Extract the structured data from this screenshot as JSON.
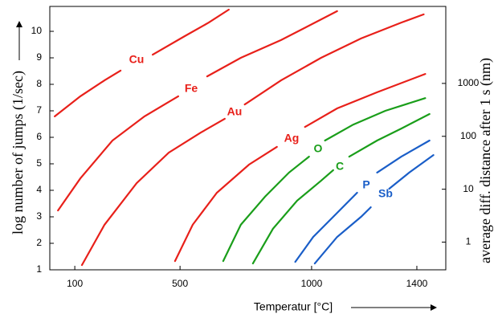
{
  "chart_data": {
    "type": "line",
    "ylabel": "log number of jumps (1/sec)",
    "y2label": "average diff. distance after 1 s (nm)",
    "xlabel": "Temperatur  [°C]",
    "xlim": [
      5,
      1510
    ],
    "xticks": [
      100,
      500,
      1000,
      1400
    ],
    "ylim": [
      1,
      10.94
    ],
    "yticks": [
      1,
      2,
      3,
      4,
      5,
      6,
      7,
      8,
      9,
      10
    ],
    "y2lim": [
      0.3,
      28500
    ],
    "y2ticks": [
      1,
      10,
      100,
      1000
    ],
    "y2scale": "log",
    "series": [
      {
        "name": "Cu",
        "color": "#e8201a",
        "x": [
          24,
          121,
          213,
          274,
          null,
          396,
          518,
          609,
          685
        ],
        "values": [
          6.79,
          7.55,
          8.15,
          8.52,
          null,
          9.12,
          9.82,
          10.33,
          10.82
        ]
      },
      {
        "name": "Fe",
        "color": "#e8201a",
        "x": [
          36,
          121,
          243,
          365,
          493,
          null,
          603,
          731,
          884,
          1097
        ],
        "values": [
          3.24,
          4.45,
          5.88,
          6.79,
          7.55,
          null,
          8.3,
          9.0,
          9.67,
          10.76
        ]
      },
      {
        "name": "Au",
        "color": "#e8201a",
        "x": [
          127,
          213,
          335,
          457,
          579,
          670,
          null,
          746,
          884,
          1036,
          1188,
          1341,
          1426
        ],
        "values": [
          1.18,
          2.7,
          4.27,
          5.42,
          6.18,
          6.7,
          null,
          7.24,
          8.15,
          9.0,
          9.73,
          10.33,
          10.64
        ]
      },
      {
        "name": "Ag",
        "color": "#e8201a",
        "x": [
          481,
          548,
          640,
          762,
          868,
          null,
          975,
          1097,
          1249,
          1432
        ],
        "values": [
          1.33,
          2.7,
          3.91,
          4.97,
          5.64,
          null,
          6.39,
          7.09,
          7.7,
          8.39
        ]
      },
      {
        "name": "O",
        "color": "#1a9e1a",
        "x": [
          664,
          731,
          823,
          914,
          990,
          null,
          1051,
          1158,
          1280,
          1432
        ],
        "values": [
          1.33,
          2.7,
          3.76,
          4.67,
          5.27,
          null,
          5.88,
          6.48,
          7.0,
          7.48
        ]
      },
      {
        "name": "C",
        "color": "#1a9e1a",
        "x": [
          777,
          853,
          945,
          1036,
          1082,
          null,
          1143,
          1249,
          1341,
          1448
        ],
        "values": [
          1.24,
          2.55,
          3.61,
          4.36,
          4.76,
          null,
          5.27,
          5.88,
          6.33,
          6.88
        ]
      },
      {
        "name": "P",
        "color": "#1a5ec8",
        "x": [
          938,
          1006,
          1097,
          1173,
          null,
          1249,
          1341,
          1448
        ],
        "values": [
          1.3,
          2.24,
          3.15,
          3.91,
          null,
          4.67,
          5.27,
          5.88
        ]
      },
      {
        "name": "Sb",
        "color": "#1a5ec8",
        "x": [
          1012,
          1097,
          1188,
          1225,
          null,
          1295,
          1371,
          1463
        ],
        "values": [
          1.24,
          2.24,
          3.0,
          3.36,
          null,
          4.06,
          4.67,
          5.33
        ]
      }
    ]
  }
}
